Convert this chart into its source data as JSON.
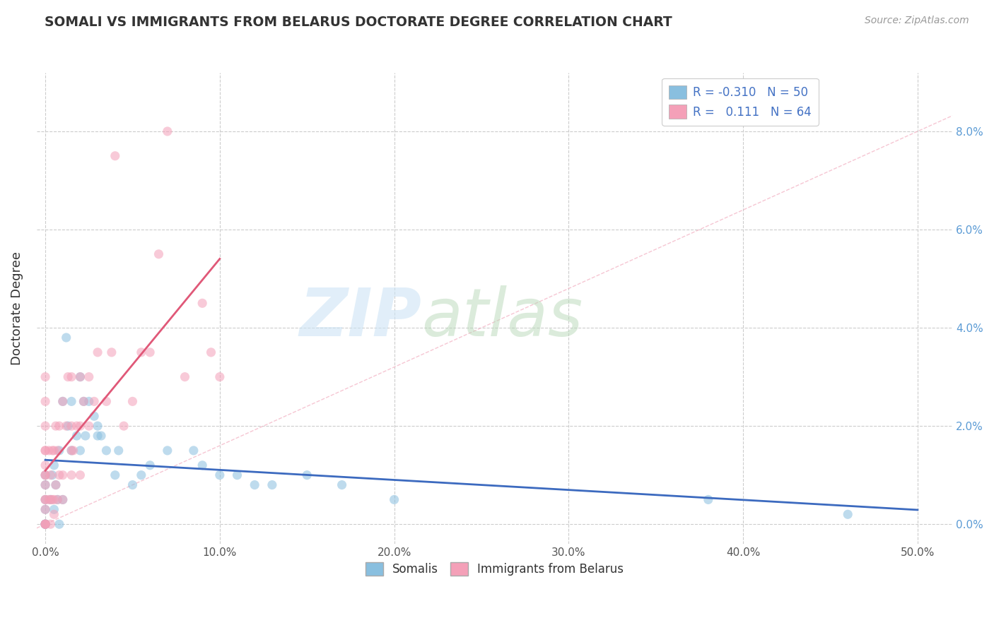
{
  "title": "SOMALI VS IMMIGRANTS FROM BELARUS DOCTORATE DEGREE CORRELATION CHART",
  "source": "Source: ZipAtlas.com",
  "xlabel_ticks": [
    "0.0%",
    "10.0%",
    "20.0%",
    "30.0%",
    "40.0%",
    "50.0%"
  ],
  "xlabel_tick_vals": [
    0.0,
    10.0,
    20.0,
    30.0,
    40.0,
    50.0
  ],
  "ylabel": "Doctorate Degree",
  "ylabel_ticks": [
    "0.0%",
    "2.0%",
    "4.0%",
    "6.0%",
    "8.0%"
  ],
  "ylabel_tick_vals": [
    0.0,
    2.0,
    4.0,
    6.0,
    8.0
  ],
  "xlim": [
    -0.5,
    52.0
  ],
  "ylim": [
    -0.4,
    9.2
  ],
  "grid_color": "#cccccc",
  "background_color": "#ffffff",
  "legend_R1": "-0.310",
  "legend_N1": "50",
  "legend_R2": "0.111",
  "legend_N2": "64",
  "color_somali": "#89bfdf",
  "color_belarus": "#f4a0b8",
  "color_somali_line": "#3c6abf",
  "color_belarus_line": "#e05878",
  "color_diagonal": "#e8b4c0",
  "scatter_alpha": 0.55,
  "scatter_size": 90,
  "somali_x": [
    0.0,
    0.0,
    0.0,
    0.0,
    0.0,
    0.0,
    0.0,
    0.0,
    0.3,
    0.4,
    0.5,
    0.5,
    0.6,
    0.7,
    0.8,
    0.8,
    1.0,
    1.0,
    1.2,
    1.3,
    1.5,
    1.5,
    1.8,
    2.0,
    2.0,
    2.2,
    2.3,
    2.5,
    2.8,
    3.0,
    3.0,
    3.2,
    3.5,
    4.0,
    4.2,
    5.0,
    5.5,
    6.0,
    7.0,
    8.5,
    9.0,
    10.0,
    11.0,
    12.0,
    13.0,
    15.0,
    17.0,
    20.0,
    38.0,
    46.0
  ],
  "somali_y": [
    0.0,
    0.0,
    0.0,
    0.0,
    0.3,
    0.5,
    0.8,
    1.0,
    0.5,
    1.0,
    0.3,
    1.2,
    0.8,
    0.5,
    0.0,
    1.5,
    0.5,
    2.5,
    3.8,
    2.0,
    1.5,
    2.5,
    1.8,
    1.5,
    3.0,
    2.5,
    1.8,
    2.5,
    2.2,
    2.0,
    1.8,
    1.8,
    1.5,
    1.0,
    1.5,
    0.8,
    1.0,
    1.2,
    1.5,
    1.5,
    1.2,
    1.0,
    1.0,
    0.8,
    0.8,
    1.0,
    0.8,
    0.5,
    0.5,
    0.2
  ],
  "belarus_x": [
    0.0,
    0.0,
    0.0,
    0.0,
    0.0,
    0.0,
    0.0,
    0.0,
    0.0,
    0.0,
    0.0,
    0.0,
    0.0,
    0.0,
    0.0,
    0.0,
    0.2,
    0.2,
    0.3,
    0.3,
    0.3,
    0.4,
    0.4,
    0.5,
    0.5,
    0.5,
    0.6,
    0.6,
    0.7,
    0.7,
    0.8,
    0.8,
    1.0,
    1.0,
    1.0,
    1.2,
    1.3,
    1.5,
    1.5,
    1.5,
    1.5,
    1.6,
    1.8,
    2.0,
    2.0,
    2.0,
    2.2,
    2.5,
    2.5,
    2.8,
    3.0,
    3.5,
    3.8,
    4.0,
    4.5,
    5.0,
    5.5,
    6.0,
    6.5,
    7.0,
    8.0,
    9.0,
    9.5,
    10.0
  ],
  "belarus_y": [
    0.0,
    0.0,
    0.0,
    0.0,
    0.3,
    0.5,
    0.5,
    0.8,
    1.0,
    1.0,
    1.2,
    1.5,
    1.5,
    2.0,
    2.5,
    3.0,
    0.5,
    1.5,
    0.0,
    0.5,
    1.0,
    0.5,
    1.5,
    0.2,
    0.5,
    1.5,
    0.8,
    2.0,
    0.5,
    1.5,
    1.0,
    2.0,
    0.5,
    1.0,
    2.5,
    2.0,
    3.0,
    1.0,
    1.5,
    2.0,
    3.0,
    1.5,
    2.0,
    1.0,
    2.0,
    3.0,
    2.5,
    2.0,
    3.0,
    2.5,
    3.5,
    2.5,
    3.5,
    7.5,
    2.0,
    2.5,
    3.5,
    3.5,
    5.5,
    8.0,
    3.0,
    4.5,
    3.5,
    3.0
  ]
}
